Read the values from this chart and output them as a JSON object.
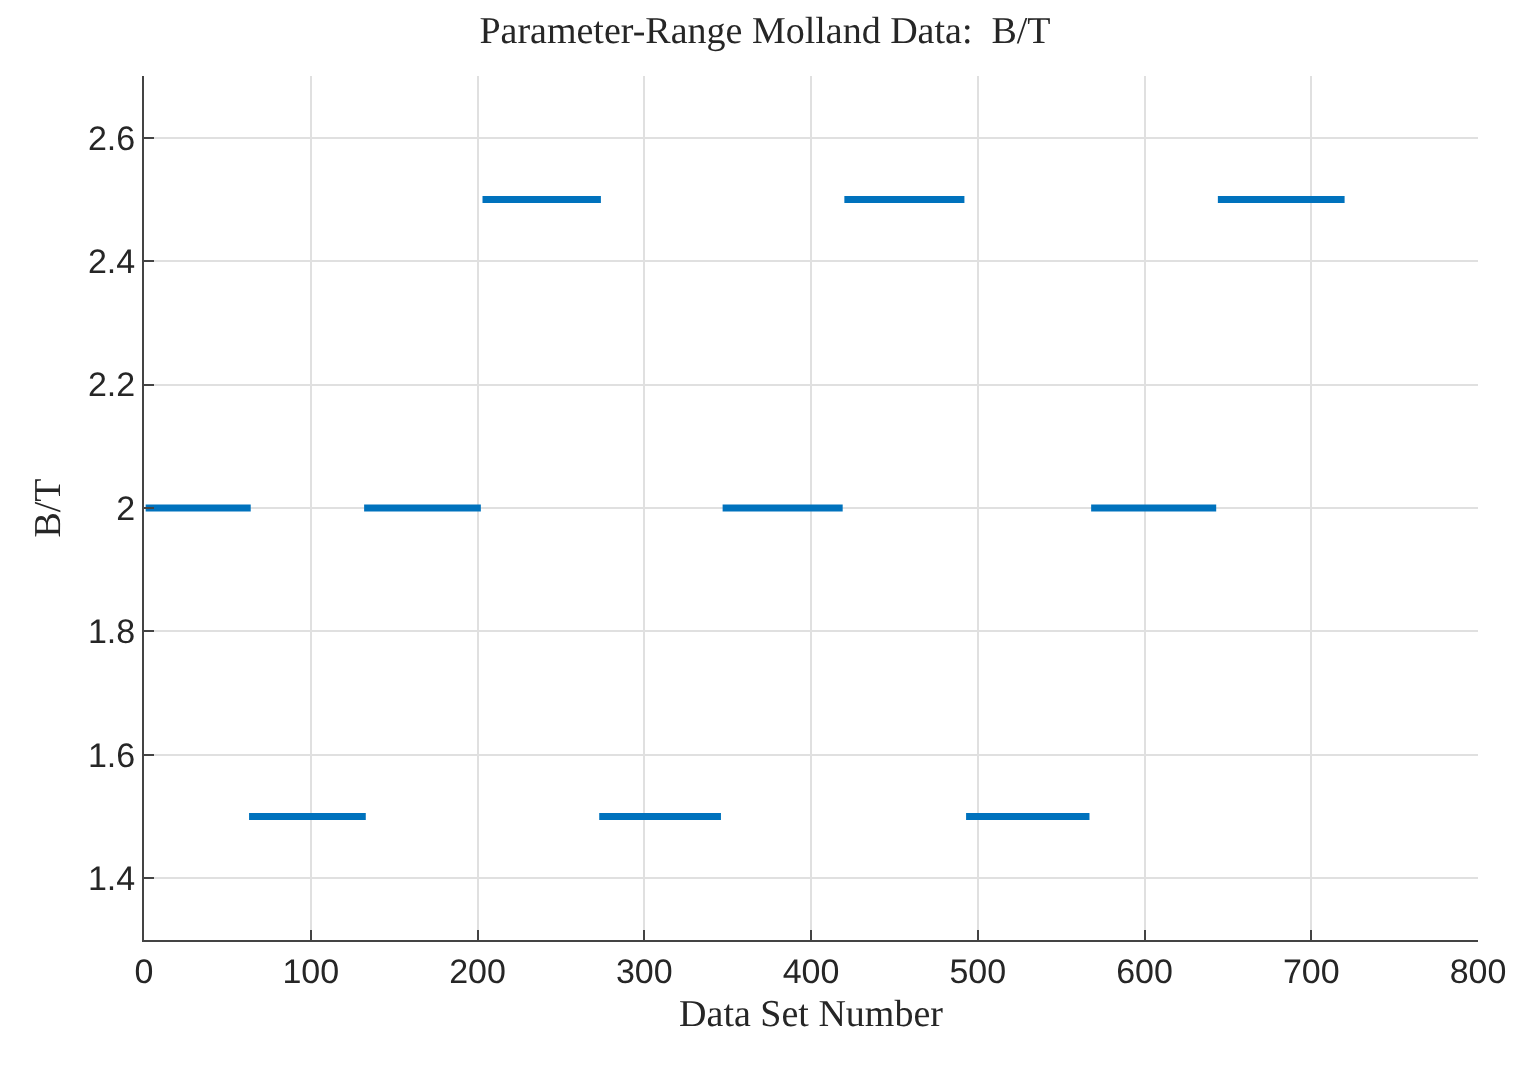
{
  "chart_data": {
    "type": "line",
    "title": "Parameter-Range Molland Data:  B/T",
    "xlabel": "Data Set Number",
    "ylabel": "B/T",
    "xlim": [
      0,
      800
    ],
    "xticks": [
      0,
      100,
      200,
      300,
      400,
      500,
      600,
      700,
      800
    ],
    "ylim": [
      1.3,
      2.7
    ],
    "yticks": [
      1.4,
      1.6,
      1.8,
      2,
      2.2,
      2.4,
      2.6
    ],
    "grid": true,
    "marker": "none",
    "line_style": "solid",
    "series": [
      {
        "color": "#0072bd",
        "x": [
          1,
          64
        ],
        "values": [
          2,
          2
        ]
      },
      {
        "color": "#0072bd",
        "x": [
          63,
          133
        ],
        "values": [
          1.5,
          1.5
        ]
      },
      {
        "color": "#0072bd",
        "x": [
          132,
          202
        ],
        "values": [
          2,
          2
        ]
      },
      {
        "color": "#0072bd",
        "x": [
          203,
          274
        ],
        "values": [
          2.5,
          2.5
        ]
      },
      {
        "color": "#0072bd",
        "x": [
          273,
          346
        ],
        "values": [
          1.5,
          1.5
        ]
      },
      {
        "color": "#0072bd",
        "x": [
          347,
          419
        ],
        "values": [
          2,
          2
        ]
      },
      {
        "color": "#0072bd",
        "x": [
          420,
          492
        ],
        "values": [
          2.5,
          2.5
        ]
      },
      {
        "color": "#0072bd",
        "x": [
          493,
          567
        ],
        "values": [
          1.5,
          1.5
        ]
      },
      {
        "color": "#0072bd",
        "x": [
          568,
          643
        ],
        "values": [
          2,
          2
        ]
      },
      {
        "color": "#0072bd",
        "x": [
          644,
          720
        ],
        "values": [
          2.5,
          2.5
        ]
      }
    ]
  }
}
